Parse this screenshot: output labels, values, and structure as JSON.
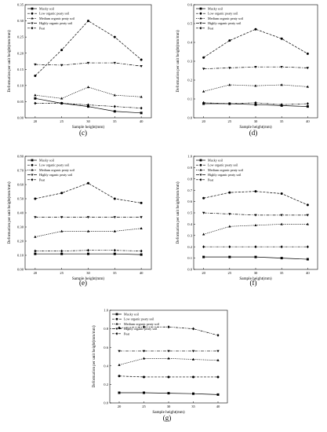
{
  "chart_data": [
    {
      "type": "line",
      "panel_label": "(c)",
      "xlabel": "Sample height(mm)",
      "ylabel": "Deformation per unit height(mm/mm)",
      "x": [
        20,
        25,
        30,
        35,
        40
      ],
      "ylim": [
        0,
        0.35
      ],
      "yticks": [
        "0.00",
        "0.05",
        "0.10",
        "0.15",
        "0.20",
        "0.25",
        "0.30",
        "0.35"
      ],
      "legend_position": "top-left",
      "series": [
        {
          "name": "Mucky soil",
          "values": [
            0.06,
            0.045,
            0.035,
            0.02,
            0.015
          ]
        },
        {
          "name": "Low organic peaty soil",
          "values": [
            0.13,
            0.21,
            0.3,
            0.25,
            0.18
          ]
        },
        {
          "name": "Medium organic peaty soil",
          "values": [
            0.07,
            0.06,
            0.095,
            0.07,
            0.065
          ]
        },
        {
          "name": "Highly organic peaty soil",
          "values": [
            0.165,
            0.163,
            0.17,
            0.17,
            0.16
          ]
        },
        {
          "name": "Peat",
          "values": [
            0.045,
            0.045,
            0.04,
            0.035,
            0.03
          ]
        }
      ]
    },
    {
      "type": "line",
      "panel_label": "(d)",
      "xlabel": "Sample height(mm)",
      "ylabel": "Deformation per unit height(mm/mm)",
      "x": [
        20,
        25,
        30,
        35,
        40
      ],
      "ylim": [
        0,
        0.6
      ],
      "yticks": [
        "0.0",
        "0.1",
        "0.2",
        "0.3",
        "0.4",
        "0.5",
        "0.6"
      ],
      "legend_position": "top-left",
      "series": [
        {
          "name": "Mucky soil",
          "values": [
            0.075,
            0.075,
            0.07,
            0.065,
            0.06
          ]
        },
        {
          "name": "Low organic peaty soil",
          "values": [
            0.32,
            0.41,
            0.47,
            0.42,
            0.34
          ]
        },
        {
          "name": "Medium organic peaty soil",
          "values": [
            0.14,
            0.175,
            0.17,
            0.175,
            0.165
          ]
        },
        {
          "name": "Highly organic peaty soil",
          "values": [
            0.26,
            0.265,
            0.27,
            0.27,
            0.265
          ]
        },
        {
          "name": "Peat",
          "values": [
            0.08,
            0.075,
            0.08,
            0.07,
            0.075
          ]
        }
      ]
    },
    {
      "type": "line",
      "panel_label": "(e)",
      "xlabel": "Sample height(mm)",
      "ylabel": "Deformation per unit height(mm/mm)",
      "x": [
        20,
        25,
        30,
        35,
        40
      ],
      "ylim": [
        0,
        0.8
      ],
      "yticks": [
        "0.00",
        "0.10",
        "0.20",
        "0.30",
        "0.40",
        "0.50",
        "0.60",
        "0.70",
        "0.80"
      ],
      "legend_position": "top-left",
      "series": [
        {
          "name": "Mucky soil",
          "values": [
            0.11,
            0.11,
            0.11,
            0.11,
            0.105
          ]
        },
        {
          "name": "Low organic peaty soil",
          "values": [
            0.5,
            0.54,
            0.61,
            0.5,
            0.47
          ]
        },
        {
          "name": "Medium organic peaty soil",
          "values": [
            0.23,
            0.27,
            0.27,
            0.27,
            0.29
          ]
        },
        {
          "name": "Highly organic peaty soil",
          "values": [
            0.37,
            0.37,
            0.37,
            0.37,
            0.37
          ]
        },
        {
          "name": "Peat",
          "values": [
            0.13,
            0.13,
            0.135,
            0.135,
            0.13
          ]
        }
      ]
    },
    {
      "type": "line",
      "panel_label": "(f)",
      "xlabel": "Sample height(mm)",
      "ylabel": "Deformation per unit height(mm/mm)",
      "x": [
        20,
        25,
        30,
        35,
        40
      ],
      "ylim": [
        0,
        1.0
      ],
      "yticks": [
        "0.0",
        "0.1",
        "0.2",
        "0.3",
        "0.4",
        "0.5",
        "0.6",
        "0.7",
        "0.8",
        "0.9",
        "1.0"
      ],
      "legend_position": "top-left",
      "series": [
        {
          "name": "Mucky soil",
          "values": [
            0.11,
            0.11,
            0.11,
            0.1,
            0.09
          ]
        },
        {
          "name": "Low organic peaty soil",
          "values": [
            0.63,
            0.68,
            0.69,
            0.67,
            0.57
          ]
        },
        {
          "name": "Medium organic peaty soil",
          "values": [
            0.31,
            0.38,
            0.39,
            0.4,
            0.4
          ]
        },
        {
          "name": "Highly organic peaty soil",
          "values": [
            0.5,
            0.49,
            0.48,
            0.48,
            0.48
          ]
        },
        {
          "name": "Peat",
          "values": [
            0.2,
            0.2,
            0.2,
            0.2,
            0.2
          ]
        }
      ]
    },
    {
      "type": "line",
      "panel_label": "(g)",
      "xlabel": "Sample height(mm)",
      "ylabel": "Deformation per unit height(mm/mm)",
      "x": [
        20,
        25,
        30,
        35,
        40
      ],
      "ylim": [
        0,
        1.0
      ],
      "yticks": [
        "0.0",
        "0.2",
        "0.4",
        "0.6",
        "0.8",
        "1.0"
      ],
      "legend_position": "top-left",
      "series": [
        {
          "name": "Mucky soil",
          "values": [
            0.11,
            0.11,
            0.105,
            0.1,
            0.09
          ]
        },
        {
          "name": "Low organic peaty soil",
          "values": [
            0.29,
            0.28,
            0.28,
            0.28,
            0.28
          ]
        },
        {
          "name": "Medium organic peaty soil",
          "values": [
            0.41,
            0.48,
            0.48,
            0.47,
            0.46
          ]
        },
        {
          "name": "Highly organic peaty soil",
          "values": [
            0.56,
            0.56,
            0.56,
            0.56,
            0.56
          ]
        },
        {
          "name": "Peat",
          "values": [
            0.81,
            0.82,
            0.82,
            0.8,
            0.73
          ]
        }
      ]
    }
  ],
  "series_styles": [
    {
      "marker": "square",
      "dash": ""
    },
    {
      "marker": "circle",
      "dash": "3,1.5"
    },
    {
      "marker": "triangle-up",
      "dash": "1.2,1.2"
    },
    {
      "marker": "triangle-down",
      "dash": "4,1.5,1,1.5"
    },
    {
      "marker": "diamond",
      "dash": "3,1,1,1,1,1"
    }
  ]
}
